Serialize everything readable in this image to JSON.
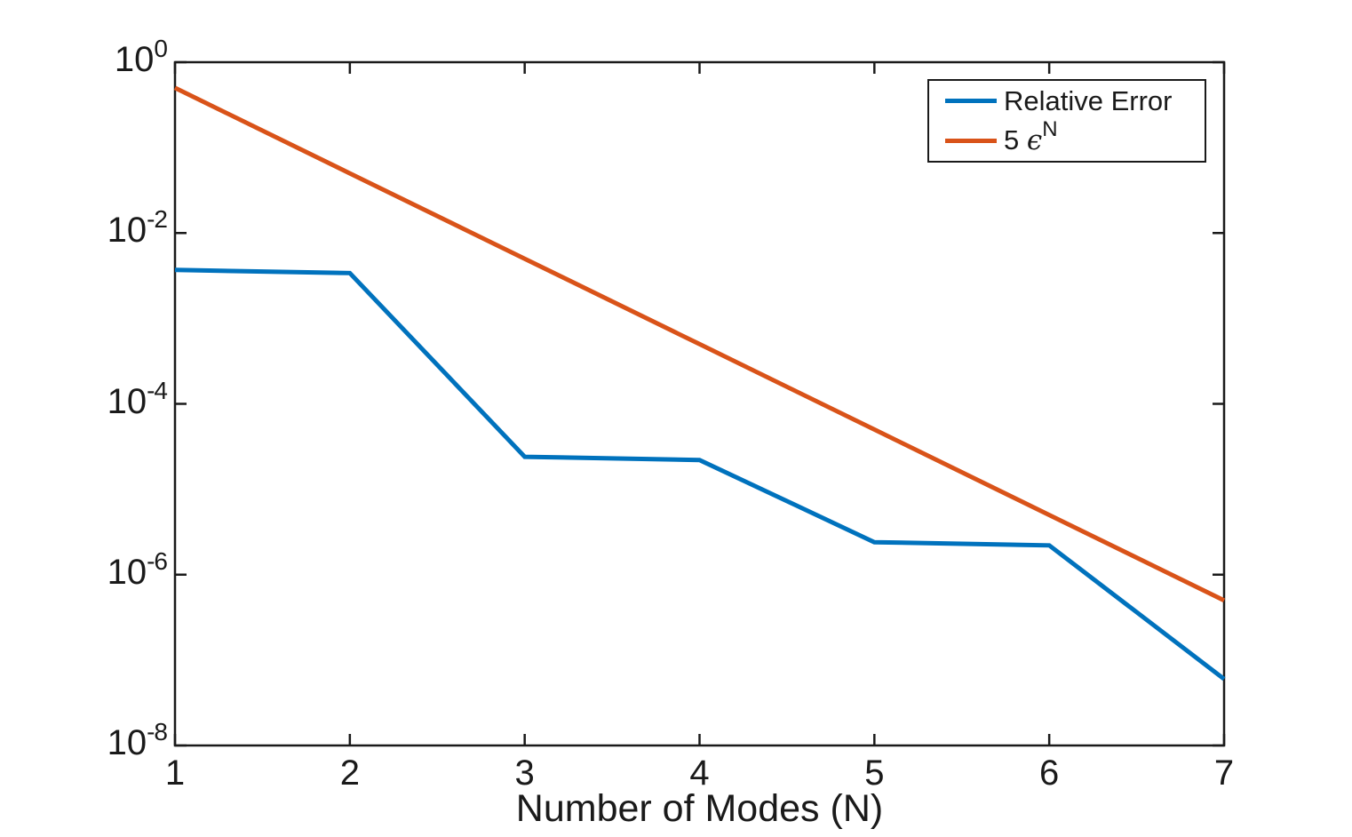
{
  "chart_data": {
    "type": "line",
    "title": "",
    "xlabel": "Number of Modes (N)",
    "ylabel": "",
    "x": [
      1,
      2,
      3,
      4,
      5,
      6,
      7
    ],
    "xlim": [
      1,
      7
    ],
    "y_scale": "log10",
    "ylim": [
      1e-08,
      1
    ],
    "grid": false,
    "legend_position": "top-right",
    "xticks": [
      "1",
      "2",
      "3",
      "4",
      "5",
      "6",
      "7"
    ],
    "ytick_base": "10",
    "ytick_exponents": [
      "0",
      "-2",
      "-4",
      "-6",
      "-8"
    ],
    "series": [
      {
        "name": "Relative Error",
        "color": "#0072BD",
        "values": [
          0.0037,
          0.0034,
          2.4e-05,
          2.2e-05,
          2.4e-06,
          2.2e-06,
          6e-08
        ]
      },
      {
        "name": "5 ϵ^N",
        "color": "#D95319",
        "values": [
          0.5,
          0.05,
          0.005,
          0.0005,
          5e-05,
          5e-06,
          5e-07
        ]
      }
    ]
  },
  "legend": {
    "items": [
      {
        "label": "Relative Error",
        "color": "#0072BD"
      },
      {
        "num": "5 ",
        "eps": "ϵ",
        "sup": "N",
        "color": "#D95319"
      }
    ]
  },
  "colors": {
    "axis": "#1a1a1a",
    "background": "#ffffff",
    "blue": "#0072BD",
    "orange": "#D95319"
  }
}
